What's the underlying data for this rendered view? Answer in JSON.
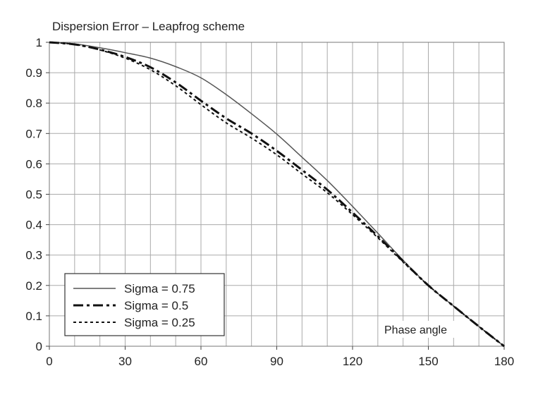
{
  "chart_data": {
    "type": "line",
    "title": "Dispersion Error – Leapfrog scheme",
    "xlabel": "Phase angle",
    "ylabel": "",
    "xlim": [
      0,
      180
    ],
    "ylim": [
      0,
      1
    ],
    "grid": true,
    "legend_position": "bottom-left",
    "x_ticks": [
      0,
      30,
      60,
      90,
      120,
      150,
      180
    ],
    "x_tick_labels": [
      "0",
      "30",
      "60",
      "90",
      "120",
      "150",
      "180"
    ],
    "y_ticks": [
      0,
      0.1,
      0.2,
      0.3,
      0.4,
      0.5,
      0.6,
      0.7,
      0.8,
      0.9,
      1
    ],
    "y_tick_labels": [
      "0",
      "0.1",
      "0.2",
      "0.3",
      "0.4",
      "0.5",
      "0.6",
      "0.7",
      "0.8",
      "0.9",
      "1"
    ],
    "x": [
      0,
      10,
      20,
      30,
      40,
      50,
      60,
      70,
      80,
      90,
      100,
      110,
      120,
      130,
      140,
      150,
      160,
      170,
      180
    ],
    "series": [
      {
        "name": "Sigma = 0.75",
        "style": "solid-thin",
        "color": "#555555",
        "values": [
          1.0,
          0.995,
          0.982,
          0.966,
          0.948,
          0.92,
          0.883,
          0.828,
          0.765,
          0.698,
          0.622,
          0.545,
          0.46,
          0.372,
          0.283,
          0.2,
          0.132,
          0.065,
          0.0
        ]
      },
      {
        "name": "Sigma = 0.5",
        "style": "dash-dot-thick",
        "color": "#111111",
        "values": [
          1.0,
          0.993,
          0.976,
          0.952,
          0.918,
          0.868,
          0.808,
          0.75,
          0.7,
          0.643,
          0.58,
          0.515,
          0.44,
          0.362,
          0.28,
          0.2,
          0.132,
          0.065,
          0.0
        ]
      },
      {
        "name": "Sigma = 0.25",
        "style": "dotted",
        "color": "#111111",
        "values": [
          1.0,
          0.993,
          0.975,
          0.948,
          0.91,
          0.857,
          0.795,
          0.735,
          0.685,
          0.63,
          0.567,
          0.505,
          0.433,
          0.357,
          0.277,
          0.2,
          0.132,
          0.065,
          0.0
        ]
      }
    ]
  }
}
